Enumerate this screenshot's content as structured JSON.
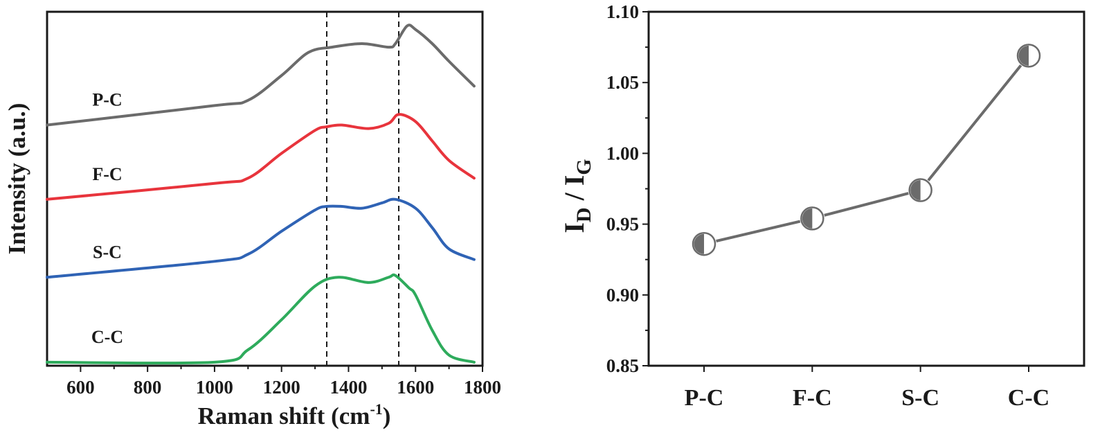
{
  "chart_data": [
    {
      "type": "line",
      "xlabel": "Raman shift (cm",
      "xlabel_sup": "-1",
      "xlabel_end": ")",
      "ylabel": "Intensity (a.u.)",
      "xlim": [
        500,
        1800
      ],
      "ylim": [
        0,
        100
      ],
      "x_ticks": [
        600,
        800,
        1000,
        1200,
        1400,
        1600,
        1800
      ],
      "reference_lines": [
        1335,
        1550
      ],
      "series": [
        {
          "name": "P-C",
          "color": "#6b6b6b",
          "x": [
            500,
            1000,
            1100,
            1200,
            1280,
            1350,
            1440,
            1520,
            1540,
            1575,
            1600,
            1650,
            1700,
            1775
          ],
          "values": [
            68,
            73.5,
            75,
            82,
            88.5,
            90,
            91,
            90,
            91,
            96,
            95,
            91,
            86,
            79
          ]
        },
        {
          "name": "F-C",
          "color": "#e8343c",
          "x": [
            500,
            1000,
            1100,
            1200,
            1300,
            1335,
            1380,
            1460,
            1520,
            1550,
            1600,
            1650,
            1700,
            1775
          ],
          "values": [
            47,
            51.5,
            53,
            60,
            66.5,
            67.5,
            68,
            67,
            68.5,
            71,
            69,
            63.5,
            58,
            53
          ]
        },
        {
          "name": "S-C",
          "color": "#2f63b5",
          "x": [
            500,
            1000,
            1100,
            1200,
            1300,
            1335,
            1380,
            1440,
            1500,
            1540,
            1600,
            1650,
            1700,
            1775
          ],
          "values": [
            25,
            29.5,
            31.5,
            38,
            44,
            45,
            45,
            44.5,
            46,
            47,
            44.5,
            39,
            33,
            30
          ]
        },
        {
          "name": "C-C",
          "color": "#2eab5c",
          "x": [
            500,
            1000,
            1100,
            1200,
            1300,
            1370,
            1460,
            1520,
            1540,
            1580,
            1600,
            1650,
            1700,
            1775
          ],
          "values": [
            1,
            1,
            4.5,
            13,
            22.5,
            25,
            23.5,
            25,
            25.5,
            22,
            20,
            10,
            3,
            1
          ]
        }
      ]
    },
    {
      "type": "line",
      "categories": [
        "P-C",
        "F-C",
        "S-C",
        "C-C"
      ],
      "values": [
        0.936,
        0.954,
        0.974,
        1.069
      ],
      "ylim": [
        0.85,
        1.1
      ],
      "y_ticks": [
        "0.85",
        "0.90",
        "0.95",
        "1.00",
        "1.05",
        "1.10"
      ],
      "ylabel_main": "I",
      "ylabel_sub1": "D",
      "ylabel_sep": " / I",
      "ylabel_sub2": "G",
      "line_color": "#6b6b6b",
      "marker_color": "#6b6b6b"
    }
  ]
}
